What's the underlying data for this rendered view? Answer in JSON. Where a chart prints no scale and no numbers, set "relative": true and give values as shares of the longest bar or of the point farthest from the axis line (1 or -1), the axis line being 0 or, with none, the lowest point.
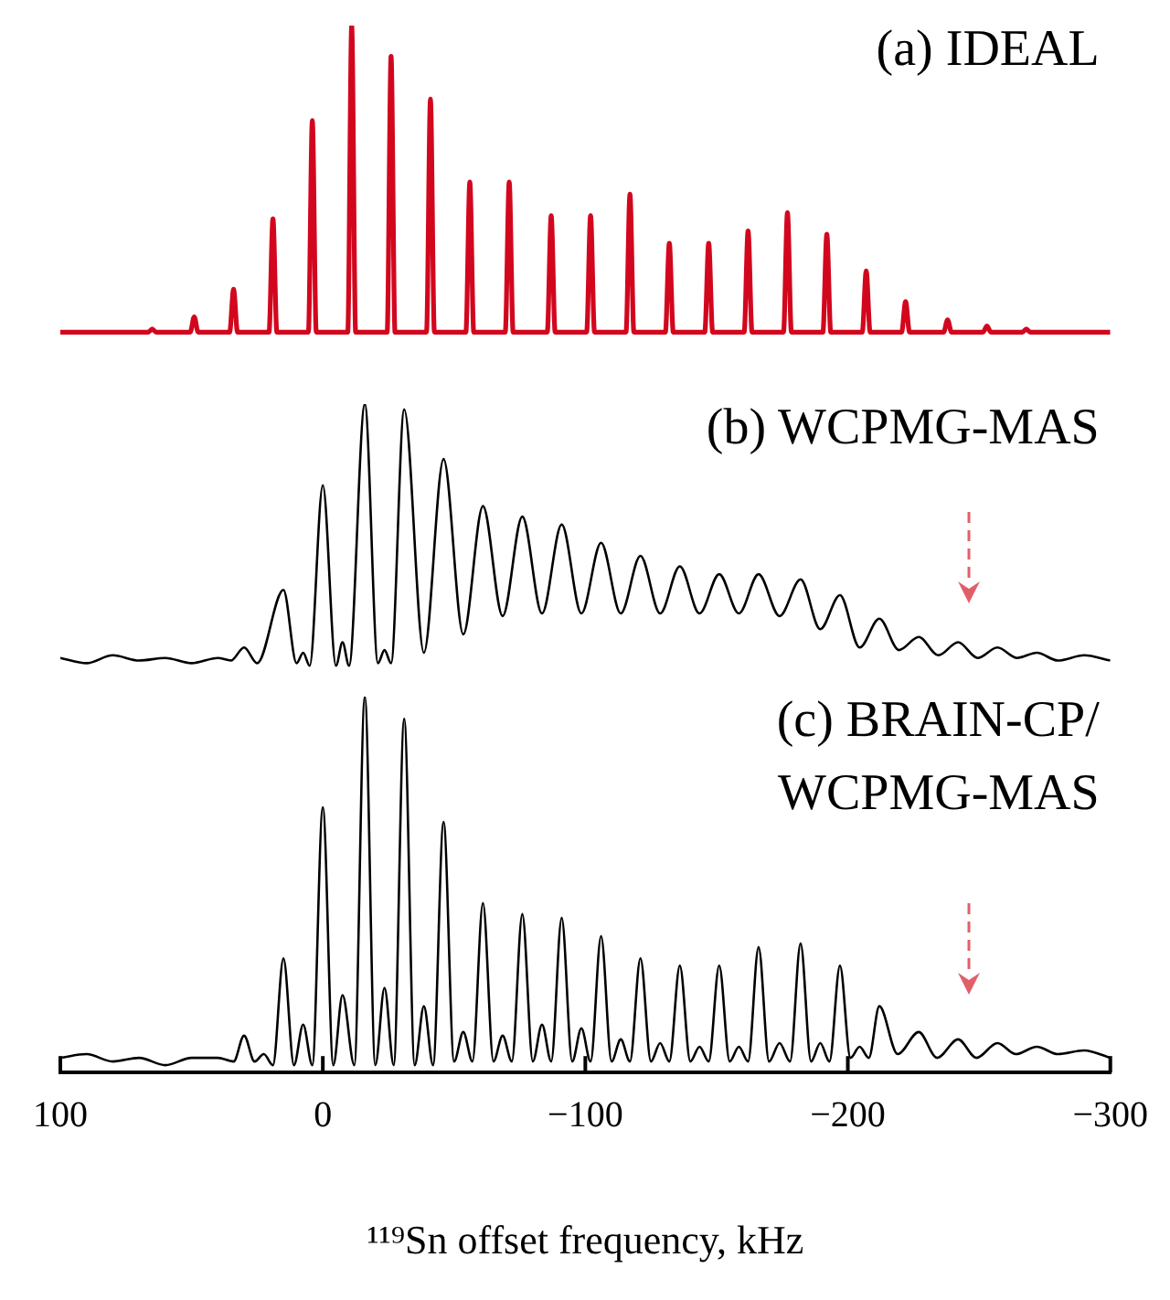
{
  "chart_data": [
    {
      "type": "line",
      "title": "(a) IDEAL",
      "relative": true,
      "color": "#d2071e",
      "xlim": [
        100,
        -300
      ],
      "tick_labels": false,
      "x": [
        100,
        66.5,
        65,
        63.5,
        50.5,
        49,
        47.5,
        35.5,
        34,
        32.5,
        20.5,
        19,
        17.5,
        5.5,
        4,
        2.5,
        -9.5,
        -11,
        -12.5,
        -24.5,
        -26,
        -27.5,
        -39.5,
        -41,
        -42.5,
        -54.5,
        -56,
        -57.5,
        -69.5,
        -71,
        -72.5,
        -85.5,
        -87,
        -88.5,
        -100.5,
        -102,
        -103.5,
        -115.5,
        -117,
        -118.5,
        -130.5,
        -132,
        -133.5,
        -145.5,
        -147,
        -148.5,
        -160.5,
        -162,
        -163.5,
        -175.5,
        -177,
        -178.5,
        -190.5,
        -192,
        -193.5,
        -205.5,
        -207,
        -208.5,
        -220.5,
        -222,
        -223.5,
        -236.5,
        -238,
        -239.5,
        -251.5,
        -253,
        -254.5,
        -266.5,
        -268,
        -269.5,
        -300
      ],
      "values": [
        0,
        0,
        0.01,
        0,
        0,
        0.05,
        0,
        0,
        0.14,
        0,
        0,
        0.37,
        0,
        0,
        0.69,
        0,
        0,
        1,
        0,
        0,
        0.9,
        0,
        0,
        0.76,
        0,
        0,
        0.49,
        0,
        0,
        0.49,
        0,
        0,
        0.38,
        0,
        0,
        0.38,
        0,
        0,
        0.45,
        0,
        0,
        0.29,
        0,
        0,
        0.29,
        0,
        0,
        0.33,
        0,
        0,
        0.39,
        0,
        0,
        0.32,
        0,
        0,
        0.2,
        0,
        0,
        0.1,
        0,
        0,
        0.04,
        0,
        0,
        0.02,
        0,
        0,
        0.01,
        0,
        0
      ]
    },
    {
      "type": "line",
      "title": "(b) WCPMG-MAS",
      "relative": true,
      "color": "#000000",
      "xlim": [
        100,
        -300
      ],
      "tick_labels": false,
      "x": [
        100,
        90,
        80,
        70,
        60,
        50,
        40,
        35,
        30,
        25,
        15,
        10,
        7.5,
        5,
        0,
        -5,
        -7.5,
        -10,
        -16,
        -21,
        -23.5,
        -26,
        -31,
        -38.5,
        -46,
        -53.5,
        -61,
        -68.5,
        -76,
        -83.5,
        -91,
        -98.5,
        -106,
        -113.5,
        -121,
        -128.5,
        -136,
        -143.5,
        -151,
        -158.5,
        -166,
        -174,
        -182,
        -189.5,
        -197,
        -204.5,
        -212,
        -219.5,
        -227,
        -234.5,
        -242,
        -249.5,
        -257,
        -264.5,
        -272,
        -280,
        -290,
        -300
      ],
      "values": [
        0.03,
        0.01,
        0.04,
        0.02,
        0.03,
        0.01,
        0.03,
        0.02,
        0.07,
        0.01,
        0.29,
        0.01,
        0.05,
        0,
        0.69,
        0,
        0.09,
        0,
        1,
        0.01,
        0.06,
        0.01,
        0.98,
        0.05,
        0.79,
        0.12,
        0.61,
        0.19,
        0.57,
        0.2,
        0.54,
        0.2,
        0.47,
        0.2,
        0.42,
        0.2,
        0.38,
        0.2,
        0.35,
        0.2,
        0.35,
        0.19,
        0.33,
        0.14,
        0.27,
        0.07,
        0.18,
        0.06,
        0.11,
        0.04,
        0.09,
        0.03,
        0.07,
        0.03,
        0.05,
        0.02,
        0.04,
        0.02
      ]
    },
    {
      "type": "line",
      "title": "(c) BRAIN-CP/WCPMG-MAS",
      "relative": true,
      "color": "#000000",
      "xlim": [
        100,
        -300
      ],
      "tick_labels": "x",
      "xlabel": "¹¹⁹Sn offset frequency, kHz",
      "xticks": [
        100,
        0,
        {
          "value": -100,
          "label": "−100"
        },
        {
          "value": -200,
          "label": "−200"
        },
        {
          "value": -300,
          "label": "−300"
        }
      ],
      "x": [
        100,
        90,
        80,
        70,
        60,
        50,
        40,
        34,
        30,
        26,
        22.5,
        19,
        15,
        11,
        7.5,
        4,
        0,
        -4,
        -7.5,
        -12,
        -16,
        -20,
        -23.5,
        -27,
        -31,
        -35,
        -38.5,
        -42,
        -46,
        -50,
        -53.5,
        -57,
        -61,
        -65,
        -68.5,
        -72,
        -76,
        -80,
        -83.5,
        -87,
        -91,
        -95,
        -98.5,
        -102,
        -106,
        -110,
        -113.5,
        -117,
        -121,
        -125,
        -128.5,
        -132,
        -136,
        -140,
        -143.5,
        -147,
        -151,
        -155,
        -158.5,
        -162,
        -166,
        -170,
        -174,
        -178,
        -182,
        -186,
        -189.5,
        -193,
        -197,
        -201,
        -204.5,
        -208,
        -212,
        -219,
        -227,
        -234,
        -242,
        -249,
        -257,
        -264,
        -272,
        -280,
        -290,
        -300
      ],
      "values": [
        0.02,
        0.03,
        0.01,
        0.02,
        0,
        0.02,
        0.02,
        0.01,
        0.08,
        0.01,
        0.03,
        0,
        0.29,
        0,
        0.11,
        0,
        0.7,
        0,
        0.19,
        0,
        1,
        0,
        0.21,
        0,
        0.94,
        0,
        0.16,
        0,
        0.66,
        0.01,
        0.09,
        0.01,
        0.44,
        0.01,
        0.08,
        0.01,
        0.41,
        0.01,
        0.11,
        0.01,
        0.4,
        0.01,
        0.1,
        0.01,
        0.35,
        0.01,
        0.07,
        0.01,
        0.29,
        0.01,
        0.06,
        0.01,
        0.27,
        0.01,
        0.05,
        0.01,
        0.27,
        0.01,
        0.05,
        0.01,
        0.32,
        0.01,
        0.06,
        0.01,
        0.33,
        0.01,
        0.06,
        0.01,
        0.27,
        0.02,
        0.05,
        0.02,
        0.16,
        0.03,
        0.09,
        0.02,
        0.07,
        0.02,
        0.06,
        0.03,
        0.05,
        0.03,
        0.04,
        0.02
      ]
    }
  ]
}
